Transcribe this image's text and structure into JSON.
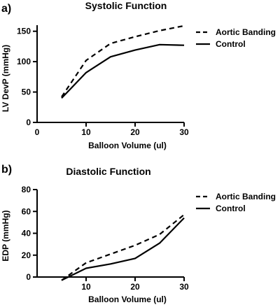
{
  "chart_data": [
    {
      "panel": "a)",
      "type": "line",
      "title": "Systolic Function",
      "xlabel": "Balloon Volume (ul)",
      "ylabel": "LV DevP (mmHg)",
      "xlim": [
        0,
        30
      ],
      "ylim": [
        0,
        160
      ],
      "xticks": [
        0,
        10,
        20,
        30
      ],
      "yticks": [
        0,
        50,
        100,
        150
      ],
      "xtick_labels": [
        "0",
        "10",
        "20",
        "30"
      ],
      "ytick_labels": [
        "0",
        "50",
        "100",
        "150"
      ],
      "legend_position": "top-right",
      "grid": false,
      "series": [
        {
          "name": "Aortic Banding",
          "style": "dashed",
          "x": [
            5,
            10,
            15,
            20,
            25,
            30
          ],
          "y": [
            42,
            102,
            130,
            141,
            151,
            159
          ]
        },
        {
          "name": "Control",
          "style": "solid",
          "x": [
            5,
            10,
            15,
            20,
            25,
            30
          ],
          "y": [
            40,
            82,
            108,
            119,
            128,
            127
          ]
        }
      ]
    },
    {
      "panel": "b)",
      "type": "line",
      "title": "Diastolic Function",
      "xlabel": "Balloon Volume (ul)",
      "ylabel": "EDP (mmHg)",
      "xlim": [
        0,
        30
      ],
      "ylim": [
        0,
        80
      ],
      "xticks": [
        10,
        20,
        30
      ],
      "yticks": [
        0,
        20,
        40,
        60,
        80
      ],
      "xtick_labels": [
        "10",
        "20",
        "30"
      ],
      "ytick_labels": [
        "0",
        "20",
        "40",
        "60",
        "80"
      ],
      "legend_position": "top-right",
      "grid": false,
      "series": [
        {
          "name": "Aortic Banding",
          "style": "dashed",
          "x": [
            5,
            10,
            15,
            20,
            25,
            30
          ],
          "y": [
            -3,
            13,
            21,
            29,
            39,
            57
          ]
        },
        {
          "name": "Control",
          "style": "solid",
          "x": [
            5,
            10,
            15,
            20,
            25,
            30
          ],
          "y": [
            -3,
            8,
            12,
            17,
            31,
            54
          ]
        }
      ]
    }
  ]
}
